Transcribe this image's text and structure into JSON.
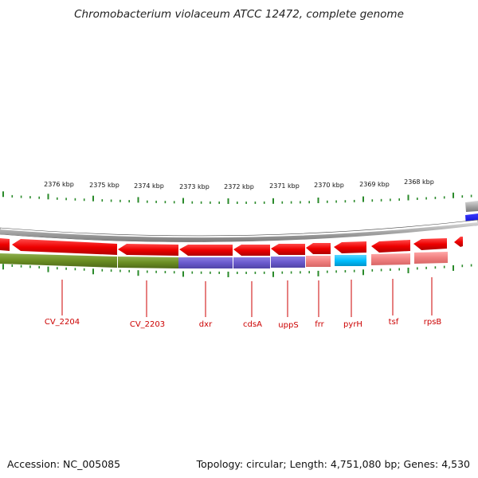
{
  "title": "Chromobacterium violaceum ATCC 12472, complete genome",
  "footer": {
    "accession": "Accession: NC_005085",
    "summary": "Topology: circular; Length: 4,751,080 bp; Genes: 4,530"
  },
  "scale_labels": [
    "2376 kbp",
    "2375 kbp",
    "2374 kbp",
    "2373 kbp",
    "2372 kbp",
    "2371 kbp",
    "2370 kbp",
    "2369 kbp",
    "2368 kbp"
  ],
  "genes": [
    "CV_2204",
    "CV_2203",
    "dxr",
    "cdsA",
    "uppS",
    "frr",
    "pyrH",
    "tsf",
    "rpsB"
  ],
  "colors": {
    "forward_gene": "#0000ee",
    "reverse_gene": "#ee0000",
    "label": "#cc0000",
    "ticks": "#2a8a2a",
    "backbone": "#999999",
    "band_olive": "#6b8e23",
    "band_purple": "#6a5acd",
    "band_pink": "#f08080",
    "band_cyan": "#00bfff"
  }
}
